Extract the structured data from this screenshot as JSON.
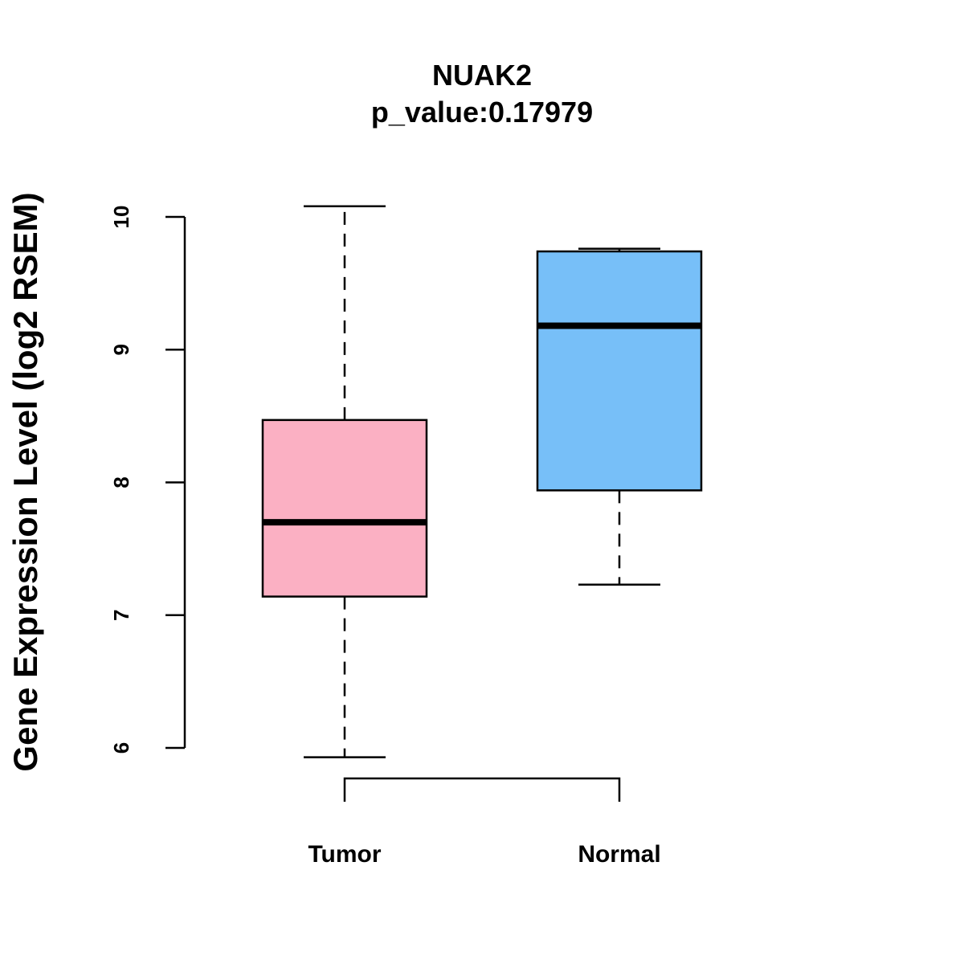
{
  "chart_data": {
    "type": "boxplot",
    "title": "NUAK2",
    "subtitle": "p_value:0.17979",
    "xlabel": "",
    "ylabel": "Gene Expression Level (log2 RSEM)",
    "ylim": [
      6,
      10
    ],
    "yticks": [
      "6",
      "7",
      "8",
      "9",
      "10"
    ],
    "categories": [
      "Tumor",
      "Normal"
    ],
    "boxes": [
      {
        "name": "Tumor",
        "color": "#FBB0C3",
        "min": 5.93,
        "q1": 7.14,
        "median": 7.7,
        "q3": 8.47,
        "max": 10.08
      },
      {
        "name": "Normal",
        "color": "#77BFF8",
        "min": 7.23,
        "q1": 7.94,
        "median": 9.18,
        "q3": 9.74,
        "max": 9.76
      }
    ],
    "grid": false,
    "comparison_bracket": [
      "Tumor",
      "Normal"
    ]
  }
}
